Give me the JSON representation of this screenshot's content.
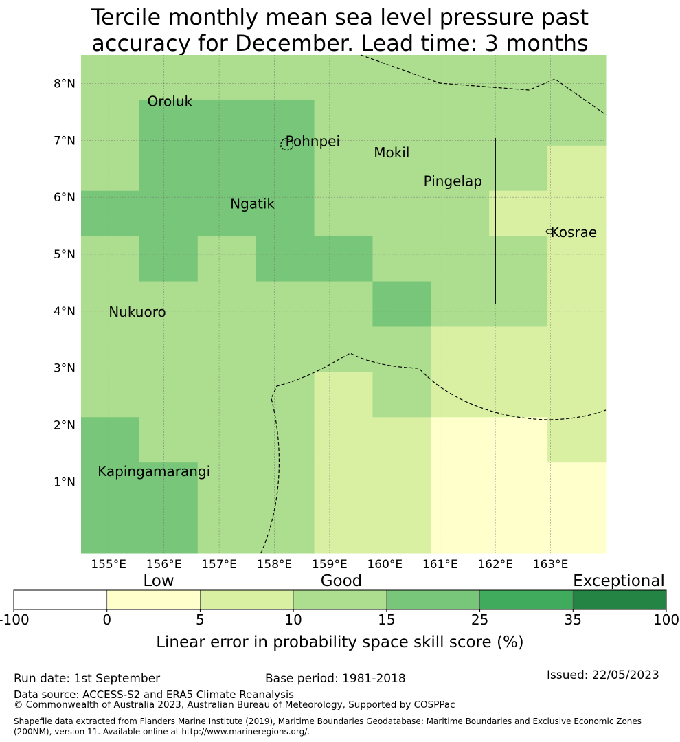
{
  "title": {
    "line1": "Tercile monthly mean sea level pressure past",
    "line2": "accuracy for December. Lead time: 3 months"
  },
  "map": {
    "lon_range": [
      154.5,
      164.0
    ],
    "lat_range": [
      -0.25,
      8.5
    ],
    "grid_step_deg": 0.833,
    "x_ticks": [
      "155°E",
      "156°E",
      "157°E",
      "158°E",
      "159°E",
      "160°E",
      "161°E",
      "162°E",
      "163°E"
    ],
    "y_ticks": [
      "8°N",
      "7°N",
      "6°N",
      "5°N",
      "4°N",
      "3°N",
      "2°N",
      "1°N"
    ],
    "places": [
      {
        "name": "Oroluk",
        "lon": 155.7,
        "lat": 7.6
      },
      {
        "name": "Pohnpei",
        "lon": 158.2,
        "lat": 6.9
      },
      {
        "name": "Mokil",
        "lon": 159.8,
        "lat": 6.7
      },
      {
        "name": "Pingelap",
        "lon": 160.7,
        "lat": 6.2
      },
      {
        "name": "Ngatik",
        "lon": 157.2,
        "lat": 5.8
      },
      {
        "name": "Kosrae",
        "lon": 163.0,
        "lat": 5.3
      },
      {
        "name": "Nukuoro",
        "lon": 155.0,
        "lat": 3.9
      },
      {
        "name": "Kapingamarangi",
        "lon": 154.8,
        "lat": 1.1
      }
    ],
    "cell_classes": [
      [
        2,
        2,
        2,
        2,
        2,
        2,
        2,
        2,
        2
      ],
      [
        2,
        3,
        3,
        3,
        2,
        2,
        2,
        2,
        2
      ],
      [
        2,
        3,
        3,
        3,
        2,
        2,
        2,
        2,
        1
      ],
      [
        3,
        3,
        3,
        3,
        2,
        2,
        2,
        1,
        1
      ],
      [
        2,
        3,
        2,
        3,
        3,
        2,
        2,
        2,
        1
      ],
      [
        2,
        2,
        2,
        2,
        2,
        3,
        2,
        2,
        1
      ],
      [
        2,
        2,
        2,
        2,
        2,
        2,
        1,
        1,
        1
      ],
      [
        2,
        2,
        2,
        2,
        1,
        2,
        1,
        1,
        1
      ],
      [
        3,
        2,
        2,
        2,
        1,
        1,
        0,
        0,
        1
      ],
      [
        3,
        3,
        2,
        2,
        1,
        1,
        0,
        0,
        0
      ],
      [
        3,
        3,
        2,
        2,
        1,
        1,
        0,
        0,
        0
      ]
    ]
  },
  "colorbar": {
    "category_low": "Low",
    "category_good": "Good",
    "category_exceptional": "Exceptional",
    "ticks": [
      "-100",
      "0",
      "5",
      "10",
      "15",
      "25",
      "35",
      "100"
    ],
    "colors": [
      "#ffffff",
      "#ffffcc",
      "#d9f0a3",
      "#addd8e",
      "#78c679",
      "#41ab5d",
      "#238443"
    ],
    "label": "Linear error in probability space skill score (%)"
  },
  "footer": {
    "run_date": "Run date: 1st September",
    "base_period": "Base period: 1981-2018",
    "issued": "Issued: 22/05/2023",
    "data_source": "Data source: ACCESS-S2 and ERA5 Climate Reanalysis",
    "copyright": "© Commonwealth of Australia 2023, Australian Bureau of Meteorology, Supported by COSPPac",
    "shapefile": "Shapefile data extracted from Flanders Marine Institute (2019), Maritime Boundaries Geodatabase: Maritime Boundaries and Exclusive Economic Zones (200NM), version 11. Available online at http://www.marineregions.org/."
  }
}
